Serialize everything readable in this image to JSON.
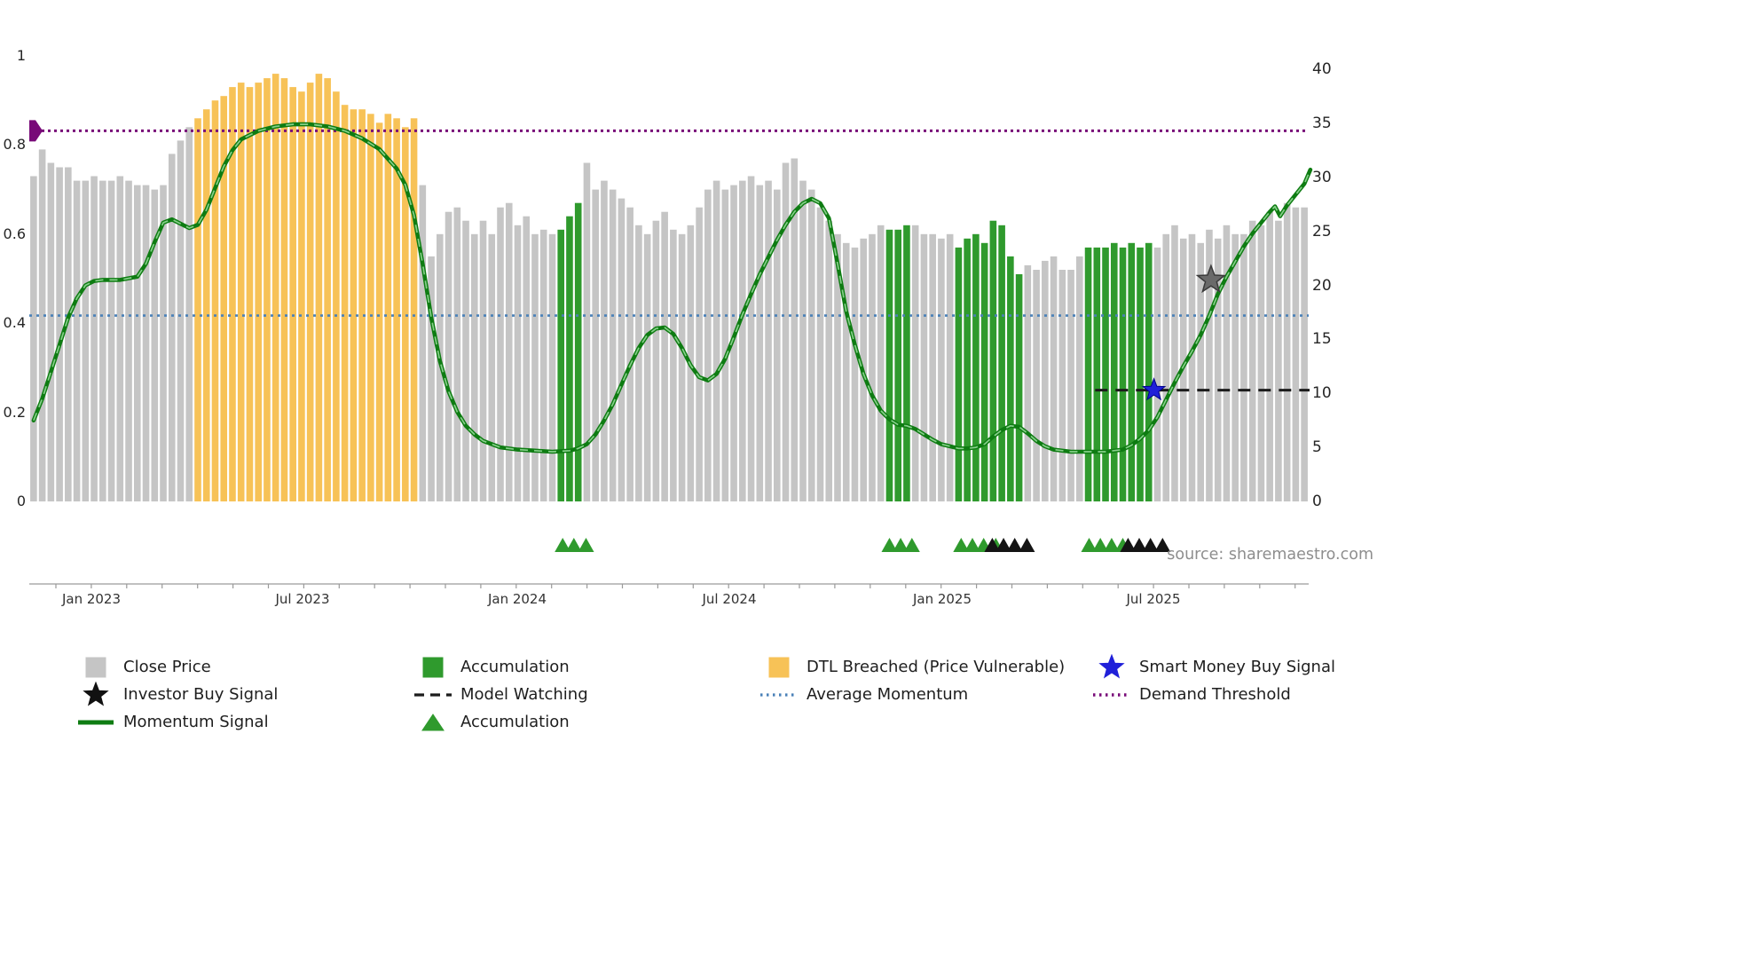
{
  "source_text": "source: sharemaestro.com",
  "colors": {
    "close_price": "#c5c5c5",
    "accumulation": "#2f9a2d",
    "accumulation_strong": "#141414",
    "dtl_breached": "#f7c257",
    "momentum": "#0e7c12",
    "momentum_dash": "#86cf8a",
    "investor_buy": "#111111",
    "investor_buy_chart": "#6a6a6a",
    "smart_money_buy": "#2020d9",
    "model_watching": "#1c1c1c",
    "average_momentum": "#4a81b8",
    "demand_threshold": "#780a78"
  },
  "chart_data": {
    "type": "bar+line",
    "title": "",
    "xlabel": "",
    "ylabel_left": "",
    "ylabel_right": "",
    "x_axis": {
      "ticks": [
        {
          "label": "Jan 2023",
          "pos": 0.0485
        },
        {
          "label": "Jul 2023",
          "pos": 0.2136
        },
        {
          "label": "Jan 2024",
          "pos": 0.3814
        },
        {
          "label": "Jul 2024",
          "pos": 0.5471
        },
        {
          "label": "Jan 2025",
          "pos": 0.7136
        },
        {
          "label": "Jul 2025",
          "pos": 0.8787
        }
      ]
    },
    "left_axis": {
      "range": [
        0,
        1
      ],
      "ticks": [
        {
          "label": "1",
          "value": 1
        },
        {
          "label": "0.8",
          "value": 0.8
        },
        {
          "label": "0.6",
          "value": 0.6
        },
        {
          "label": "0.4",
          "value": 0.4
        },
        {
          "label": "0.2",
          "value": 0.2
        },
        {
          "label": "0",
          "value": 0
        }
      ]
    },
    "right_axis": {
      "range": [
        0,
        40
      ],
      "ticks": [
        {
          "label": "40",
          "value": 40
        },
        {
          "label": "35",
          "value": 35
        },
        {
          "label": "30",
          "value": 30
        },
        {
          "label": "25",
          "value": 25
        },
        {
          "label": "20",
          "value": 20
        },
        {
          "label": "15",
          "value": 15
        },
        {
          "label": "10",
          "value": 10
        },
        {
          "label": "5",
          "value": 5
        },
        {
          "label": "0",
          "value": 0
        }
      ]
    },
    "bars": {
      "series_name": "Close Price (normalized, weekly)",
      "axis": "left",
      "count": 148,
      "state_legend": {
        "g": "close_price",
        "o": "dtl_breached",
        "G": "accumulation"
      },
      "states": "gggggggggggggggggggooooooooooooooooooooooooooggggggggggggggggGGGgggggggggggggggggggggggggggggggggggGGGgggggGGGGGGGGgggggggGGGGGGGGgggggggggggggggggg",
      "values": [
        0.73,
        0.79,
        0.76,
        0.75,
        0.75,
        0.72,
        0.72,
        0.73,
        0.72,
        0.72,
        0.73,
        0.72,
        0.71,
        0.71,
        0.7,
        0.71,
        0.78,
        0.81,
        0.84,
        0.86,
        0.88,
        0.9,
        0.91,
        0.93,
        0.94,
        0.93,
        0.94,
        0.95,
        0.96,
        0.95,
        0.93,
        0.92,
        0.94,
        0.96,
        0.95,
        0.92,
        0.89,
        0.88,
        0.88,
        0.87,
        0.85,
        0.87,
        0.86,
        0.84,
        0.86,
        0.71,
        0.55,
        0.6,
        0.65,
        0.66,
        0.63,
        0.6,
        0.63,
        0.6,
        0.66,
        0.67,
        0.62,
        0.64,
        0.6,
        0.61,
        0.6,
        0.61,
        0.64,
        0.67,
        0.76,
        0.7,
        0.72,
        0.7,
        0.68,
        0.66,
        0.62,
        0.6,
        0.63,
        0.65,
        0.61,
        0.6,
        0.62,
        0.66,
        0.7,
        0.72,
        0.7,
        0.71,
        0.72,
        0.73,
        0.71,
        0.72,
        0.7,
        0.76,
        0.77,
        0.72,
        0.7,
        0.66,
        0.63,
        0.6,
        0.58,
        0.57,
        0.59,
        0.6,
        0.62,
        0.61,
        0.61,
        0.62,
        0.62,
        0.6,
        0.6,
        0.59,
        0.6,
        0.57,
        0.59,
        0.6,
        0.58,
        0.63,
        0.62,
        0.55,
        0.51,
        0.53,
        0.52,
        0.54,
        0.55,
        0.52,
        0.52,
        0.55,
        0.57,
        0.57,
        0.57,
        0.58,
        0.57,
        0.58,
        0.57,
        0.58,
        0.57,
        0.6,
        0.62,
        0.59,
        0.6,
        0.58,
        0.61,
        0.59,
        0.62,
        0.6,
        0.6,
        0.63,
        0.62,
        0.65,
        0.63,
        0.67,
        0.66,
        0.66
      ]
    },
    "momentum": {
      "name": "Momentum Signal",
      "axis": "right",
      "points": [
        [
          0,
          7.5
        ],
        [
          1,
          9.5
        ],
        [
          2,
          12.0
        ],
        [
          3,
          14.5
        ],
        [
          4,
          17.0
        ],
        [
          5,
          18.8
        ],
        [
          6,
          20.0
        ],
        [
          7,
          20.4
        ],
        [
          8,
          20.5
        ],
        [
          10,
          20.5
        ],
        [
          12,
          20.8
        ],
        [
          13,
          22.0
        ],
        [
          14,
          24.0
        ],
        [
          15,
          25.8
        ],
        [
          16,
          26.1
        ],
        [
          17,
          25.7
        ],
        [
          18,
          25.3
        ],
        [
          19,
          25.6
        ],
        [
          20,
          27.0
        ],
        [
          21,
          29.0
        ],
        [
          22,
          31.0
        ],
        [
          23,
          32.5
        ],
        [
          24,
          33.5
        ],
        [
          26,
          34.3
        ],
        [
          28,
          34.7
        ],
        [
          30,
          34.9
        ],
        [
          32,
          34.9
        ],
        [
          34,
          34.7
        ],
        [
          36,
          34.3
        ],
        [
          38,
          33.6
        ],
        [
          40,
          32.6
        ],
        [
          42,
          30.8
        ],
        [
          43,
          29.3
        ],
        [
          44,
          26.5
        ],
        [
          45,
          22.0
        ],
        [
          46,
          17.0
        ],
        [
          47,
          13.0
        ],
        [
          48,
          10.2
        ],
        [
          49,
          8.3
        ],
        [
          50,
          7.0
        ],
        [
          51,
          6.2
        ],
        [
          52,
          5.6
        ],
        [
          54,
          5.0
        ],
        [
          56,
          4.8
        ],
        [
          58,
          4.7
        ],
        [
          60,
          4.6
        ],
        [
          62,
          4.7
        ],
        [
          63,
          4.9
        ],
        [
          64,
          5.3
        ],
        [
          65,
          6.2
        ],
        [
          66,
          7.5
        ],
        [
          67,
          9.0
        ],
        [
          68,
          10.8
        ],
        [
          69,
          12.6
        ],
        [
          70,
          14.2
        ],
        [
          71,
          15.4
        ],
        [
          72,
          16.0
        ],
        [
          73,
          16.1
        ],
        [
          74,
          15.5
        ],
        [
          75,
          14.2
        ],
        [
          76,
          12.6
        ],
        [
          77,
          11.5
        ],
        [
          78,
          11.2
        ],
        [
          79,
          11.8
        ],
        [
          80,
          13.2
        ],
        [
          81,
          15.2
        ],
        [
          82,
          17.3
        ],
        [
          83,
          19.2
        ],
        [
          84,
          21.0
        ],
        [
          85,
          22.6
        ],
        [
          86,
          24.2
        ],
        [
          87,
          25.6
        ],
        [
          88,
          26.8
        ],
        [
          89,
          27.6
        ],
        [
          90,
          28.0
        ],
        [
          91,
          27.6
        ],
        [
          92,
          26.2
        ],
        [
          93,
          22.0
        ],
        [
          94,
          17.6
        ],
        [
          95,
          14.5
        ],
        [
          96,
          11.8
        ],
        [
          97,
          9.8
        ],
        [
          98,
          8.4
        ],
        [
          99,
          7.6
        ],
        [
          100,
          7.1
        ],
        [
          101,
          7.0
        ],
        [
          102,
          6.7
        ],
        [
          103,
          6.2
        ],
        [
          104,
          5.7
        ],
        [
          105,
          5.3
        ],
        [
          106,
          5.1
        ],
        [
          107,
          4.9
        ],
        [
          108,
          4.9
        ],
        [
          109,
          5.0
        ],
        [
          110,
          5.3
        ],
        [
          111,
          6.0
        ],
        [
          112,
          6.6
        ],
        [
          113,
          7.0
        ],
        [
          114,
          6.9
        ],
        [
          115,
          6.3
        ],
        [
          116,
          5.6
        ],
        [
          117,
          5.1
        ],
        [
          118,
          4.8
        ],
        [
          120,
          4.6
        ],
        [
          122,
          4.6
        ],
        [
          124,
          4.6
        ],
        [
          126,
          4.8
        ],
        [
          127,
          5.2
        ],
        [
          128,
          5.8
        ],
        [
          129,
          6.6
        ],
        [
          130,
          7.8
        ],
        [
          131,
          9.4
        ],
        [
          132,
          11.0
        ],
        [
          133,
          12.5
        ],
        [
          134,
          13.9
        ],
        [
          135,
          15.4
        ],
        [
          136,
          17.2
        ],
        [
          137,
          19.2
        ],
        [
          138,
          20.8
        ],
        [
          139,
          22.2
        ],
        [
          140,
          23.6
        ],
        [
          141,
          24.8
        ],
        [
          142,
          25.8
        ],
        [
          143,
          26.8
        ],
        [
          143.6,
          27.3
        ],
        [
          144.2,
          26.4
        ],
        [
          145,
          27.4
        ],
        [
          146,
          28.4
        ],
        [
          147,
          29.4
        ],
        [
          147.7,
          30.7
        ]
      ]
    },
    "reference_lines": {
      "demand_threshold": {
        "name": "Demand Threshold",
        "axis": "right",
        "value": 34.3
      },
      "average_momentum": {
        "name": "Average Momentum",
        "axis": "right",
        "value": 17.2
      },
      "model_watching": {
        "name": "Model Watching",
        "axis": "right",
        "value": 10.3,
        "from_week": 122.8,
        "to_week": 147.6
      }
    },
    "signals": {
      "investor_buy": {
        "name": "Investor Buy Signal",
        "week": 136.2,
        "value": 20.5
      },
      "smart_money_buy": {
        "name": "Smart Money Buy Signal",
        "week": 129.6,
        "value": 10.3
      }
    },
    "accumulation_markers": {
      "green_weeks": [
        61.2,
        62.5,
        63.9,
        99.0,
        100.3,
        101.6,
        107.3,
        108.6,
        109.9,
        111.3,
        122.1,
        123.4,
        124.7,
        126.0
      ],
      "black_weeks": [
        110.9,
        112.2,
        113.5,
        114.9,
        126.6,
        127.9,
        129.2,
        130.6
      ]
    }
  },
  "legend": {
    "items": [
      {
        "label": "Close Price",
        "marker": "square",
        "color_key": "close_price"
      },
      {
        "label": "Accumulation",
        "marker": "square",
        "color_key": "accumulation"
      },
      {
        "label": "DTL Breached (Price Vulnerable)",
        "marker": "square",
        "color_key": "dtl_breached"
      },
      {
        "label": "Smart Money Buy Signal",
        "marker": "star",
        "color_key": "smart_money_buy"
      },
      {
        "label": "Investor Buy Signal",
        "marker": "star",
        "color_key": "investor_buy"
      },
      {
        "label": "Model Watching",
        "marker": "dashed-line",
        "color_key": "model_watching"
      },
      {
        "label": "Average Momentum",
        "marker": "dotted-line",
        "color_key": "average_momentum"
      },
      {
        "label": "Demand Threshold",
        "marker": "dotted-line",
        "color_key": "demand_threshold"
      },
      {
        "label": "Momentum Signal",
        "marker": "solid-line",
        "color_key": "momentum"
      },
      {
        "label": "Accumulation",
        "marker": "triangle",
        "color_key": "accumulation"
      }
    ]
  }
}
